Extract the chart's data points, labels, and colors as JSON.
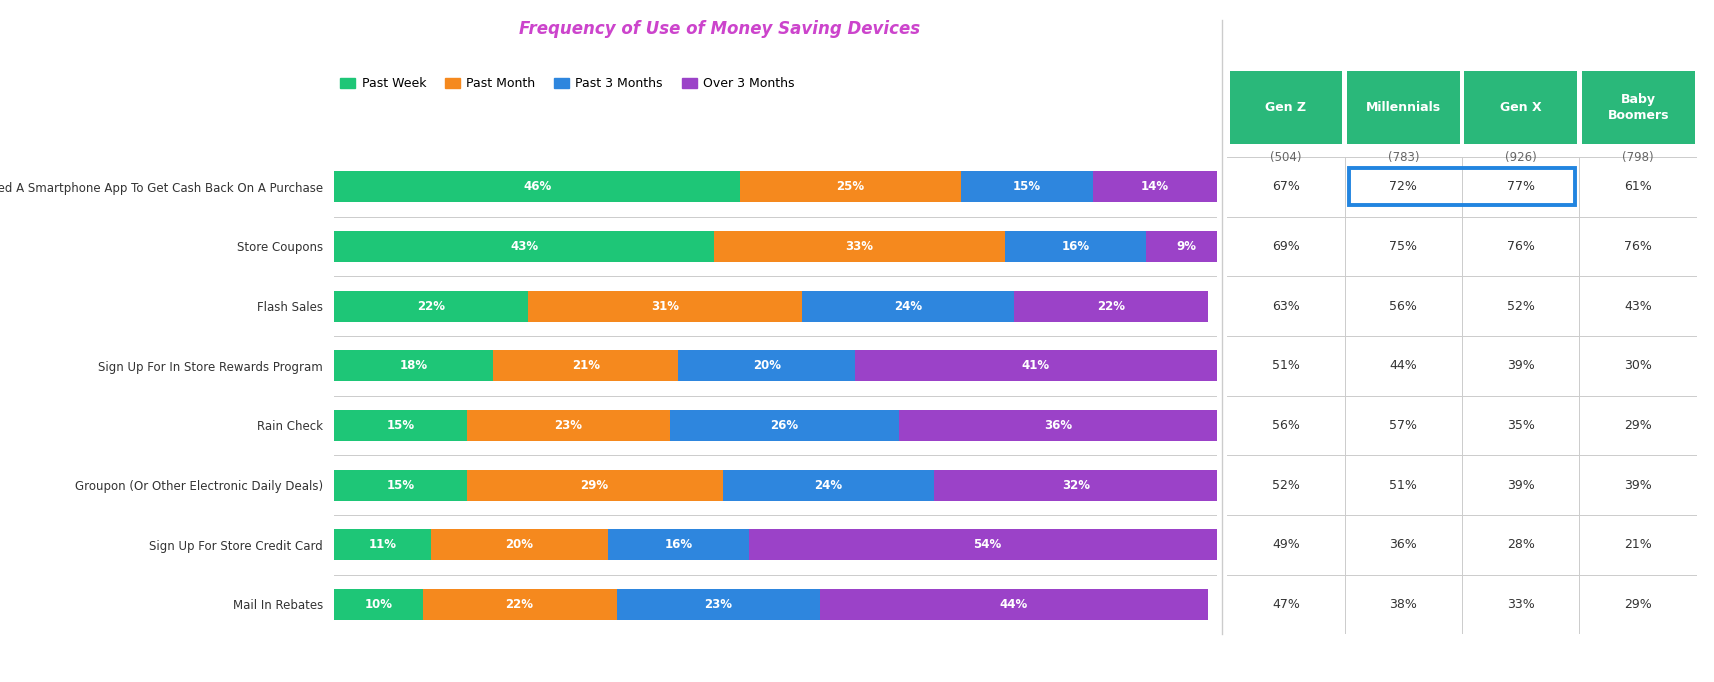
{
  "title": "Frequency of Use of Money Saving Devices",
  "categories": [
    "Used A Smartphone App To Get Cash Back On A Purchase",
    "Store Coupons",
    "Flash Sales",
    "Sign Up For In Store Rewards Program",
    "Rain Check",
    "Groupon (Or Other Electronic Daily Deals)",
    "Sign Up For Store Credit Card",
    "Mail In Rebates"
  ],
  "segments": {
    "Past Week": [
      46,
      43,
      22,
      18,
      15,
      15,
      11,
      10
    ],
    "Past Month": [
      25,
      33,
      31,
      21,
      23,
      29,
      20,
      22
    ],
    "Past 3 Months": [
      15,
      16,
      24,
      20,
      26,
      24,
      16,
      23
    ],
    "Over 3 Months": [
      14,
      9,
      22,
      41,
      36,
      32,
      54,
      44
    ]
  },
  "segment_colors": {
    "Past Week": "#1ec677",
    "Past Month": "#f5891e",
    "Past 3 Months": "#2e86de",
    "Over 3 Months": "#9b42c8"
  },
  "gen_headers": [
    "Gen Z",
    "Millennials",
    "Gen X",
    "Baby\nBoomers"
  ],
  "gen_samples": [
    "(504)",
    "(783)",
    "(926)",
    "(798)"
  ],
  "gen_data": {
    "Used A Smartphone App To Get Cash Back On A Purchase": [
      "67%",
      "72%",
      "77%",
      "61%"
    ],
    "Store Coupons": [
      "69%",
      "75%",
      "76%",
      "76%"
    ],
    "Flash Sales": [
      "63%",
      "56%",
      "52%",
      "43%"
    ],
    "Sign Up For In Store Rewards Program": [
      "51%",
      "44%",
      "39%",
      "30%"
    ],
    "Rain Check": [
      "56%",
      "57%",
      "35%",
      "29%"
    ],
    "Groupon (Or Other Electronic Daily Deals)": [
      "52%",
      "51%",
      "39%",
      "39%"
    ],
    "Sign Up For Store Credit Card": [
      "49%",
      "36%",
      "28%",
      "21%"
    ],
    "Mail In Rebates": [
      "47%",
      "38%",
      "33%",
      "29%"
    ]
  },
  "header_bg": "#2ab87a",
  "highlight_cols": [
    1,
    2
  ],
  "title_color": "#cc44cc",
  "bar_text_color": "#ffffff",
  "axis_label_color": "#333333",
  "background_color": "#ffffff",
  "highlight_color": "#2285e0"
}
